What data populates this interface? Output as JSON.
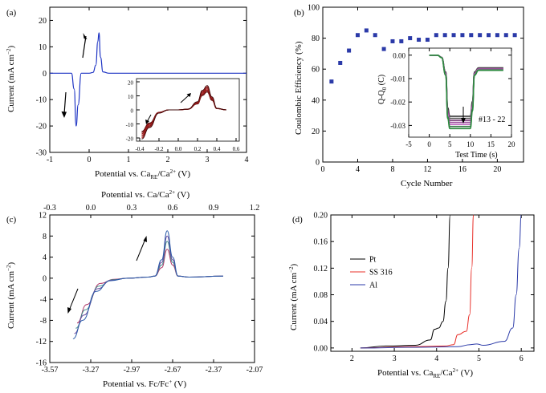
{
  "panels": {
    "a": {
      "label": "(a)",
      "xlabel_main": "Potential vs. Ca",
      "xlabel_sub": "RE",
      "xlabel_end": "/Ca",
      "xlabel_sup": "2+",
      "xlabel_unit": " (V)",
      "ylabel_main": "Current (mA cm",
      "ylabel_sup": "−2",
      "ylabel_end": ")",
      "xticks": [
        "-1",
        "0",
        "1",
        "2",
        "3",
        "4"
      ],
      "yticks": [
        "-30",
        "-20",
        "-10",
        "0",
        "10",
        "20"
      ],
      "inset_xticks": [
        "-0.4",
        "-0.2",
        "0.0",
        "0.2",
        "0.4",
        "0.6"
      ],
      "inset_yticks": [
        "-20",
        "-10",
        "0",
        "10",
        "20"
      ]
    },
    "b": {
      "label": "(b)",
      "xlabel": "Cycle Number",
      "ylabel": "Coulombic Efficiency (%)",
      "xticks": [
        "0",
        "4",
        "8",
        "12",
        "16",
        "20"
      ],
      "yticks": [
        "0",
        "20",
        "40",
        "60",
        "80",
        "100"
      ],
      "inset_ylabel_main": "Q-Q",
      "inset_ylabel_sub": "0",
      "inset_ylabel_end": " (C)",
      "inset_xlabel": "Test Time (s)",
      "inset_xticks": [
        "-5",
        "0",
        "5",
        "10",
        "15",
        "20"
      ],
      "inset_yticks": [
        "0.00",
        "-0.01",
        "-0.02",
        "-0.03"
      ],
      "inset_annotation": "#13 - 22"
    },
    "c": {
      "label": "(c)",
      "xlabel_main": "Potential vs. Fc/Fc",
      "xlabel_sup": "+",
      "xlabel_unit": " (V)",
      "top_xlabel_main": "Potential vs. Ca/Ca",
      "top_xlabel_sup": "2+",
      "top_xlabel_unit": " (V)",
      "ylabel_main": "Current (mA cm",
      "ylabel_sup": "−2",
      "ylabel_end": ")",
      "xticks": [
        "-3.57",
        "-3.27",
        "-2.97",
        "-2.67",
        "-2.37",
        "-2.07"
      ],
      "top_xticks": [
        "-0.3",
        "0.0",
        "0.3",
        "0.6",
        "0.9",
        "1.2"
      ],
      "yticks": [
        "-16",
        "-12",
        "-8",
        "-4",
        "0",
        "4",
        "8",
        "12"
      ]
    },
    "d": {
      "label": "(d)",
      "xlabel_main": "Potential vs. Ca",
      "xlabel_sub": "RE",
      "xlabel_end": "/Ca",
      "xlabel_sup": "2+",
      "xlabel_unit": " (V)",
      "ylabel_main": "Current (mA cm",
      "ylabel_sup": "−2",
      "ylabel_end": ")",
      "xticks": [
        "2",
        "3",
        "4",
        "5",
        "6"
      ],
      "yticks": [
        "0.00",
        "0.04",
        "0.08",
        "0.12",
        "0.16",
        "0.20"
      ],
      "legend": [
        "Pt",
        "SS 316",
        "Al"
      ],
      "colors": [
        "#000000",
        "#e8302a",
        "#2b3aa8"
      ]
    }
  },
  "chart_data": [
    {
      "panel": "a",
      "type": "line",
      "xlim": [
        -1,
        4
      ],
      "ylim": [
        -30,
        25
      ],
      "series": [
        {
          "x": [
            -1.0,
            -0.45,
            -0.38,
            -0.33,
            -0.28,
            -0.2,
            0.0,
            0.1,
            0.17,
            0.22,
            0.25,
            0.29,
            0.35,
            0.5,
            4.0
          ],
          "y": [
            0,
            0,
            -6,
            -20,
            -12,
            0,
            0,
            0.3,
            3,
            12,
            15.3,
            6,
            0.5,
            0,
            0
          ]
        }
      ],
      "arrows": [
        "up near anodic peak",
        "down near cathodic peak"
      ]
    },
    {
      "panel": "a-inset",
      "type": "line",
      "xlim": [
        -0.4,
        0.6
      ],
      "ylim": [
        -20,
        20
      ],
      "series": [
        {
          "x": [
            -0.38,
            -0.3,
            -0.2,
            -0.1,
            0.0,
            0.1,
            0.2,
            0.25,
            0.3,
            0.35,
            0.4,
            0.5
          ],
          "y": [
            -18,
            -11,
            -2,
            0,
            0,
            0.5,
            5,
            12,
            15,
            8,
            1,
            0
          ]
        }
      ]
    },
    {
      "panel": "b",
      "type": "scatter",
      "xlim": [
        0,
        23
      ],
      "ylim": [
        0,
        100
      ],
      "x": [
        1,
        2,
        3,
        4,
        5,
        6,
        7,
        8,
        9,
        10,
        11,
        12,
        13,
        14,
        15,
        16,
        17,
        18,
        19,
        20,
        21,
        22
      ],
      "y": [
        52,
        64,
        72,
        82,
        85,
        82,
        73,
        78,
        78,
        80,
        79,
        79,
        82,
        82,
        82,
        82,
        82,
        82,
        82,
        82,
        82,
        82
      ],
      "color": "#2b3aa8"
    },
    {
      "panel": "b-inset",
      "type": "line",
      "xlim": [
        -5,
        20
      ],
      "ylim": [
        -0.035,
        0.003
      ],
      "series": [
        {
          "x": [
            0,
            2,
            3,
            4,
            4.5,
            5,
            7,
            10,
            10.5,
            11,
            12,
            15,
            18
          ],
          "y": [
            0,
            0,
            -0.001,
            -0.008,
            -0.025,
            -0.029,
            -0.029,
            -0.029,
            -0.022,
            -0.008,
            -0.006,
            -0.006,
            -0.006
          ]
        }
      ]
    },
    {
      "panel": "c",
      "type": "line",
      "xlim": [
        -3.57,
        -2.07
      ],
      "ylim": [
        -16,
        12
      ],
      "series": [
        {
          "x": [
            -3.37,
            -3.3,
            -3.2,
            -3.1,
            -3.0,
            -2.85,
            -2.8,
            -2.75,
            -2.71,
            -2.67,
            -2.63,
            -2.55,
            -2.3
          ],
          "y": [
            -8.5,
            -5,
            -1,
            -0.2,
            0,
            0.2,
            0.4,
            2,
            5.5,
            2.5,
            0.4,
            0.2,
            0.4
          ]
        },
        {
          "x": [
            -3.37,
            -3.3,
            -3.2,
            -3.1,
            -3.0,
            -2.85,
            -2.8,
            -2.75,
            -2.71,
            -2.67,
            -2.63,
            -2.55,
            -2.3
          ],
          "y": [
            -9.5,
            -6,
            -1.5,
            -0.3,
            0,
            0.2,
            0.4,
            2.5,
            7,
            3,
            0.4,
            0.2,
            0.4
          ]
        },
        {
          "x": [
            -3.37,
            -3.3,
            -3.2,
            -3.1,
            -3.0,
            -2.85,
            -2.8,
            -2.75,
            -2.71,
            -2.67,
            -2.63,
            -2.55,
            -2.3
          ],
          "y": [
            -10.5,
            -7,
            -2,
            -0.4,
            0,
            0.2,
            0.4,
            3,
            8,
            3.5,
            0.4,
            0.2,
            0.4
          ]
        },
        {
          "x": [
            -3.37,
            -3.3,
            -3.2,
            -3.1,
            -3.0,
            -2.85,
            -2.8,
            -2.75,
            -2.71,
            -2.67,
            -2.63,
            -2.55,
            -2.3
          ],
          "y": [
            -11.5,
            -8,
            -2.5,
            -0.5,
            0,
            0.2,
            0.4,
            3.5,
            9,
            4,
            0.4,
            0.2,
            0.4
          ]
        }
      ]
    },
    {
      "panel": "d",
      "type": "line",
      "xlim": [
        1.5,
        6.3
      ],
      "ylim": [
        -0.005,
        0.2
      ],
      "series": [
        {
          "name": "Pt",
          "x": [
            2.2,
            2.8,
            3.5,
            3.85,
            3.95,
            4.05,
            4.15,
            4.22,
            4.27,
            4.32
          ],
          "y": [
            0,
            0.003,
            0.004,
            0.012,
            0.028,
            0.03,
            0.04,
            0.07,
            0.12,
            0.2
          ]
        },
        {
          "name": "SS 316",
          "x": [
            2.2,
            3.5,
            4.2,
            4.4,
            4.5,
            4.7,
            4.78,
            4.83,
            4.87
          ],
          "y": [
            0,
            0.002,
            0.003,
            0.005,
            0.02,
            0.025,
            0.05,
            0.12,
            0.2
          ]
        },
        {
          "name": "Al",
          "x": [
            2.2,
            3.5,
            4.5,
            4.8,
            4.95,
            5.1,
            5.6,
            5.8,
            5.88,
            5.95,
            6.0
          ],
          "y": [
            0,
            0.001,
            0.002,
            0.005,
            0.006,
            0.004,
            0.01,
            0.03,
            0.08,
            0.15,
            0.2
          ]
        }
      ]
    }
  ]
}
